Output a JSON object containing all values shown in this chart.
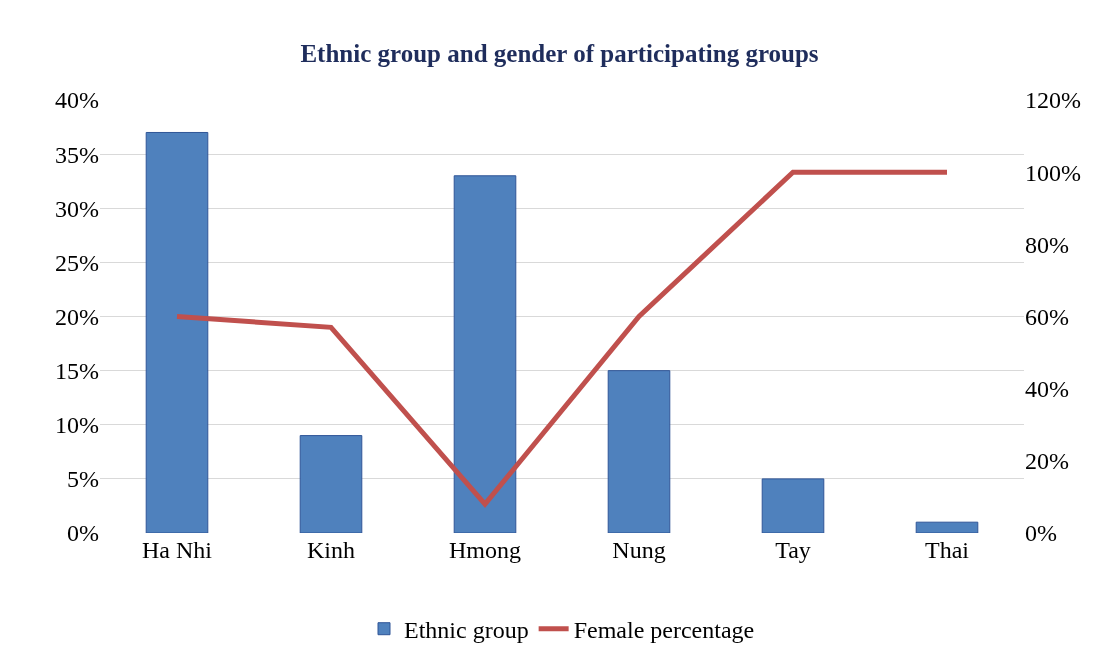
{
  "chart_data": {
    "type": "bar",
    "title": "Ethnic group and gender of participating groups",
    "categories": [
      "Ha Nhi",
      "Kinh",
      "Hmong",
      "Nung",
      "Tay",
      "Thai"
    ],
    "series": [
      {
        "name": "Ethnic group",
        "color": "#4f81bd",
        "values": [
          37,
          9,
          33,
          15,
          5,
          1
        ]
      },
      {
        "name": "Female percentage",
        "type": "line",
        "axis": "y2",
        "color": "#c0504d",
        "values": [
          60,
          57,
          8,
          60,
          100,
          100
        ]
      }
    ],
    "ylim": [
      0,
      40
    ],
    "yticks": [
      {
        "value": 0,
        "label": "0%"
      },
      {
        "value": 5,
        "label": "5%"
      },
      {
        "value": 10,
        "label": "10%"
      },
      {
        "value": 15,
        "label": "15%"
      },
      {
        "value": 20,
        "label": "20%"
      },
      {
        "value": 25,
        "label": "25%"
      },
      {
        "value": 30,
        "label": "30%"
      },
      {
        "value": 35,
        "label": "35%"
      },
      {
        "value": 40,
        "label": "40%"
      }
    ],
    "y2lim": [
      0,
      120
    ],
    "y2ticks": [
      {
        "value": 0,
        "label": "0%"
      },
      {
        "value": 20,
        "label": "20%"
      },
      {
        "value": 40,
        "label": "40%"
      },
      {
        "value": 60,
        "label": "60%"
      },
      {
        "value": 80,
        "label": "80%"
      },
      {
        "value": 100,
        "label": "100%"
      },
      {
        "value": 120,
        "label": "120%"
      }
    ],
    "grid": "y",
    "legend": "bottom",
    "line_style": "solid",
    "marker": "none"
  }
}
